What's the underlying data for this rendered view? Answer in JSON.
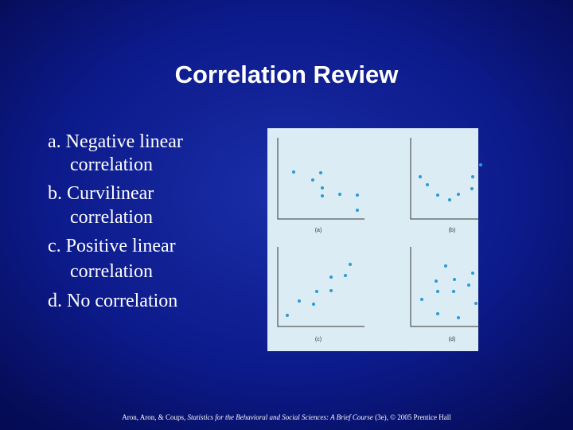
{
  "title": "Correlation Review",
  "items": [
    [
      "a. Negative linear",
      "correlation"
    ],
    [
      "b. Curvilinear",
      "correlation"
    ],
    [
      "c. Positive linear",
      "correlation"
    ],
    [
      "d. No correlation"
    ]
  ],
  "figure": {
    "panels": [
      "(a)",
      "(b)",
      "(c)",
      "(d)"
    ]
  },
  "citation": {
    "authors": "Aron, Aron, & Coups,",
    "book": "Statistics for the Behavioral and Social Sciences: A Brief Course",
    "rest": "(3e), © 2005 Prentice Hall"
  }
}
